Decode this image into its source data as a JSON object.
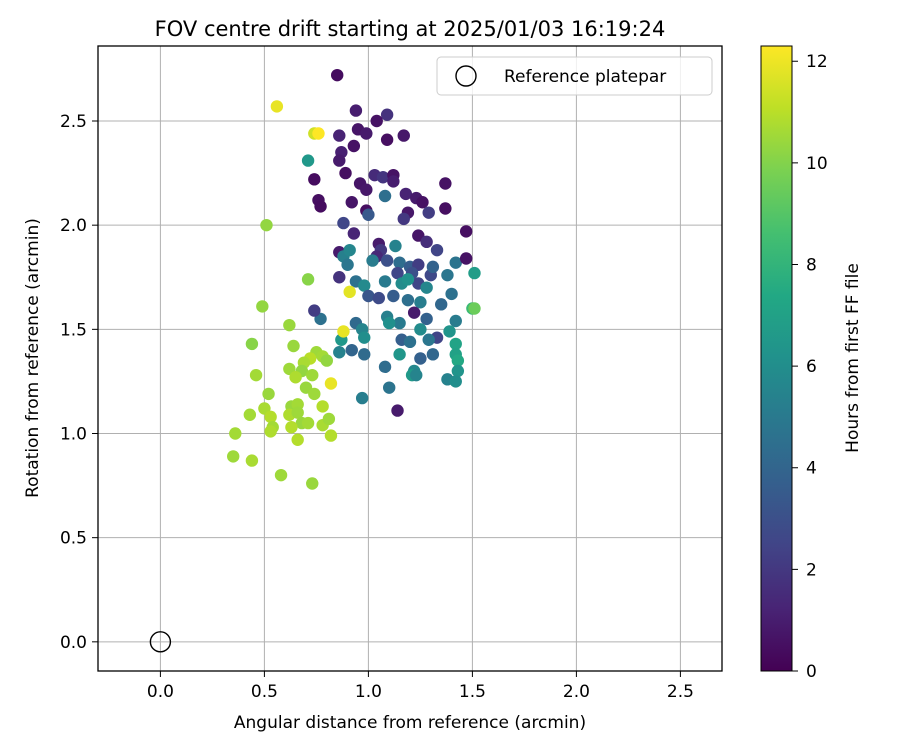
{
  "chart_data": {
    "type": "scatter",
    "title": "FOV centre drift starting at 2025/01/03 16:19:24",
    "xlabel": "Angular distance from reference (arcmin)",
    "ylabel": "Rotation from reference (arcmin)",
    "xlim": [
      -0.3,
      2.7
    ],
    "ylim": [
      -0.14,
      2.86
    ],
    "xticks": [
      0.0,
      0.5,
      1.0,
      1.5,
      2.0,
      2.5
    ],
    "yticks": [
      0.0,
      0.5,
      1.0,
      1.5,
      2.0,
      2.5
    ],
    "grid": true,
    "legend": {
      "placement": "top-right",
      "entries": [
        "Reference platepar"
      ]
    },
    "reference_point": {
      "name": "Reference platepar",
      "x": 0.0,
      "y": 0.0
    },
    "colorbar": {
      "label": "Hours from first FF file",
      "min": 0,
      "max": 12.3,
      "ticks": [
        0,
        2,
        4,
        6,
        8,
        10,
        12
      ],
      "colormap": "viridis"
    },
    "series": [
      {
        "points": [
          {
            "x": 0.85,
            "y": 2.72,
            "c": 0.4
          },
          {
            "x": 0.94,
            "y": 2.55,
            "c": 1.0
          },
          {
            "x": 1.09,
            "y": 2.53,
            "c": 1.8
          },
          {
            "x": 1.04,
            "y": 2.5,
            "c": 0.6
          },
          {
            "x": 0.95,
            "y": 2.46,
            "c": 0.7
          },
          {
            "x": 0.99,
            "y": 2.44,
            "c": 0.9
          },
          {
            "x": 0.86,
            "y": 2.43,
            "c": 1.2
          },
          {
            "x": 1.09,
            "y": 2.41,
            "c": 0.5
          },
          {
            "x": 1.17,
            "y": 2.43,
            "c": 0.8
          },
          {
            "x": 0.93,
            "y": 2.38,
            "c": 0.6
          },
          {
            "x": 0.87,
            "y": 2.35,
            "c": 1.1
          },
          {
            "x": 0.86,
            "y": 2.31,
            "c": 0.9
          },
          {
            "x": 0.89,
            "y": 2.25,
            "c": 0.5
          },
          {
            "x": 1.03,
            "y": 2.24,
            "c": 1.5
          },
          {
            "x": 1.07,
            "y": 2.23,
            "c": 1.9
          },
          {
            "x": 1.12,
            "y": 2.24,
            "c": 0.6
          },
          {
            "x": 0.74,
            "y": 2.22,
            "c": 0.4
          },
          {
            "x": 0.96,
            "y": 2.2,
            "c": 0.7
          },
          {
            "x": 1.12,
            "y": 2.21,
            "c": 1.0
          },
          {
            "x": 1.37,
            "y": 2.2,
            "c": 0.6
          },
          {
            "x": 0.99,
            "y": 2.17,
            "c": 0.8
          },
          {
            "x": 1.18,
            "y": 2.15,
            "c": 1.2
          },
          {
            "x": 1.23,
            "y": 2.13,
            "c": 0.9
          },
          {
            "x": 1.26,
            "y": 2.11,
            "c": 0.6
          },
          {
            "x": 0.76,
            "y": 2.12,
            "c": 0.5
          },
          {
            "x": 0.92,
            "y": 2.11,
            "c": 0.7
          },
          {
            "x": 1.37,
            "y": 2.08,
            "c": 0.5
          },
          {
            "x": 0.77,
            "y": 2.09,
            "c": 0.4
          },
          {
            "x": 1.29,
            "y": 2.06,
            "c": 2.2
          },
          {
            "x": 1.19,
            "y": 2.06,
            "c": 0.8
          },
          {
            "x": 0.99,
            "y": 2.07,
            "c": 0.5
          },
          {
            "x": 1.17,
            "y": 2.03,
            "c": 2.0
          },
          {
            "x": 0.88,
            "y": 2.01,
            "c": 2.6
          },
          {
            "x": 1.0,
            "y": 2.05,
            "c": 3.4
          },
          {
            "x": 1.47,
            "y": 1.97,
            "c": 0.5
          },
          {
            "x": 0.93,
            "y": 1.96,
            "c": 1.3
          },
          {
            "x": 1.24,
            "y": 1.95,
            "c": 0.7
          },
          {
            "x": 1.28,
            "y": 1.92,
            "c": 1.6
          },
          {
            "x": 1.05,
            "y": 1.91,
            "c": 0.9
          },
          {
            "x": 1.06,
            "y": 1.88,
            "c": 2.0
          },
          {
            "x": 1.13,
            "y": 1.9,
            "c": 5.4
          },
          {
            "x": 1.33,
            "y": 1.88,
            "c": 2.5
          },
          {
            "x": 0.86,
            "y": 1.87,
            "c": 0.9
          },
          {
            "x": 0.88,
            "y": 1.85,
            "c": 5.3
          },
          {
            "x": 0.91,
            "y": 1.88,
            "c": 5.6
          },
          {
            "x": 1.04,
            "y": 1.85,
            "c": 1.4
          },
          {
            "x": 1.09,
            "y": 1.83,
            "c": 3.0
          },
          {
            "x": 1.15,
            "y": 1.82,
            "c": 4.4
          },
          {
            "x": 1.2,
            "y": 1.8,
            "c": 3.6
          },
          {
            "x": 1.24,
            "y": 1.81,
            "c": 2.2
          },
          {
            "x": 1.42,
            "y": 1.82,
            "c": 4.7
          },
          {
            "x": 1.47,
            "y": 1.84,
            "c": 0.6
          },
          {
            "x": 0.9,
            "y": 1.81,
            "c": 4.8
          },
          {
            "x": 1.02,
            "y": 1.83,
            "c": 5.1
          },
          {
            "x": 1.14,
            "y": 1.77,
            "c": 2.6
          },
          {
            "x": 1.21,
            "y": 1.77,
            "c": 3.0
          },
          {
            "x": 1.3,
            "y": 1.76,
            "c": 2.7
          },
          {
            "x": 1.38,
            "y": 1.76,
            "c": 4.8
          },
          {
            "x": 1.51,
            "y": 1.77,
            "c": 6.8
          },
          {
            "x": 0.86,
            "y": 1.75,
            "c": 1.8
          },
          {
            "x": 0.94,
            "y": 1.73,
            "c": 4.6
          },
          {
            "x": 0.98,
            "y": 1.71,
            "c": 5.8
          },
          {
            "x": 1.08,
            "y": 1.73,
            "c": 5.0
          },
          {
            "x": 1.16,
            "y": 1.72,
            "c": 5.9
          },
          {
            "x": 1.24,
            "y": 1.72,
            "c": 2.5
          },
          {
            "x": 1.28,
            "y": 1.7,
            "c": 5.6
          },
          {
            "x": 1.4,
            "y": 1.67,
            "c": 4.6
          },
          {
            "x": 1.0,
            "y": 1.66,
            "c": 3.3
          },
          {
            "x": 1.05,
            "y": 1.65,
            "c": 2.8
          },
          {
            "x": 1.12,
            "y": 1.66,
            "c": 3.6
          },
          {
            "x": 1.19,
            "y": 1.64,
            "c": 4.5
          },
          {
            "x": 1.25,
            "y": 1.63,
            "c": 5.2
          },
          {
            "x": 1.35,
            "y": 1.62,
            "c": 4.1
          },
          {
            "x": 1.5,
            "y": 1.6,
            "c": 8.3
          },
          {
            "x": 0.77,
            "y": 1.55,
            "c": 4.6
          },
          {
            "x": 0.74,
            "y": 1.59,
            "c": 2.2
          },
          {
            "x": 1.09,
            "y": 1.56,
            "c": 5.3
          },
          {
            "x": 1.15,
            "y": 1.53,
            "c": 5.0
          },
          {
            "x": 1.22,
            "y": 1.58,
            "c": 0.9
          },
          {
            "x": 1.28,
            "y": 1.55,
            "c": 3.8
          },
          {
            "x": 1.42,
            "y": 1.54,
            "c": 5.1
          },
          {
            "x": 0.94,
            "y": 1.53,
            "c": 4.2
          },
          {
            "x": 0.97,
            "y": 1.5,
            "c": 5.5
          },
          {
            "x": 1.1,
            "y": 1.53,
            "c": 6.1
          },
          {
            "x": 1.25,
            "y": 1.5,
            "c": 5.9
          },
          {
            "x": 1.33,
            "y": 1.46,
            "c": 2.5
          },
          {
            "x": 1.39,
            "y": 1.49,
            "c": 6.3
          },
          {
            "x": 0.87,
            "y": 1.45,
            "c": 6.5
          },
          {
            "x": 0.98,
            "y": 1.46,
            "c": 6.0
          },
          {
            "x": 1.16,
            "y": 1.45,
            "c": 3.7
          },
          {
            "x": 1.2,
            "y": 1.44,
            "c": 4.6
          },
          {
            "x": 1.42,
            "y": 1.43,
            "c": 7.1
          },
          {
            "x": 1.29,
            "y": 1.45,
            "c": 4.8
          },
          {
            "x": 0.86,
            "y": 1.39,
            "c": 5.4
          },
          {
            "x": 0.92,
            "y": 1.4,
            "c": 4.0
          },
          {
            "x": 0.98,
            "y": 1.38,
            "c": 4.3
          },
          {
            "x": 1.15,
            "y": 1.38,
            "c": 6.4
          },
          {
            "x": 1.25,
            "y": 1.36,
            "c": 3.8
          },
          {
            "x": 1.31,
            "y": 1.38,
            "c": 4.1
          },
          {
            "x": 1.42,
            "y": 1.38,
            "c": 7.0
          },
          {
            "x": 1.43,
            "y": 1.35,
            "c": 7.4
          },
          {
            "x": 1.08,
            "y": 1.32,
            "c": 4.4
          },
          {
            "x": 1.22,
            "y": 1.3,
            "c": 5.7
          },
          {
            "x": 1.43,
            "y": 1.3,
            "c": 6.3
          },
          {
            "x": 1.21,
            "y": 1.28,
            "c": 6.6
          },
          {
            "x": 1.23,
            "y": 1.28,
            "c": 5.5
          },
          {
            "x": 1.38,
            "y": 1.26,
            "c": 5.4
          },
          {
            "x": 1.42,
            "y": 1.25,
            "c": 6.0
          },
          {
            "x": 1.1,
            "y": 1.22,
            "c": 4.7
          },
          {
            "x": 0.97,
            "y": 1.17,
            "c": 5.2
          },
          {
            "x": 1.14,
            "y": 1.11,
            "c": 0.9
          },
          {
            "x": 0.71,
            "y": 2.31,
            "c": 6.5
          },
          {
            "x": 1.08,
            "y": 2.14,
            "c": 4.5
          },
          {
            "x": 1.31,
            "y": 1.8,
            "c": 3.9
          },
          {
            "x": 1.19,
            "y": 1.74,
            "c": 6.2
          },
          {
            "x": 0.56,
            "y": 2.57,
            "c": 11.9
          },
          {
            "x": 0.74,
            "y": 2.44,
            "c": 11.4
          },
          {
            "x": 0.76,
            "y": 2.44,
            "c": 12.3
          },
          {
            "x": 0.51,
            "y": 2.0,
            "c": 10.3
          },
          {
            "x": 0.71,
            "y": 1.74,
            "c": 10.1
          },
          {
            "x": 0.91,
            "y": 1.68,
            "c": 11.8
          },
          {
            "x": 0.49,
            "y": 1.61,
            "c": 10.3
          },
          {
            "x": 0.62,
            "y": 1.52,
            "c": 10.4
          },
          {
            "x": 0.88,
            "y": 1.49,
            "c": 11.9
          },
          {
            "x": 0.44,
            "y": 1.43,
            "c": 10.1
          },
          {
            "x": 0.64,
            "y": 1.42,
            "c": 10.4
          },
          {
            "x": 0.75,
            "y": 1.39,
            "c": 10.5
          },
          {
            "x": 0.78,
            "y": 1.37,
            "c": 10.6
          },
          {
            "x": 0.72,
            "y": 1.36,
            "c": 11.0
          },
          {
            "x": 0.69,
            "y": 1.34,
            "c": 10.7
          },
          {
            "x": 0.8,
            "y": 1.35,
            "c": 10.3
          },
          {
            "x": 0.62,
            "y": 1.31,
            "c": 10.5
          },
          {
            "x": 0.68,
            "y": 1.3,
            "c": 10.3
          },
          {
            "x": 0.46,
            "y": 1.28,
            "c": 10.6
          },
          {
            "x": 0.65,
            "y": 1.27,
            "c": 10.8
          },
          {
            "x": 0.73,
            "y": 1.28,
            "c": 10.5
          },
          {
            "x": 0.7,
            "y": 1.22,
            "c": 10.4
          },
          {
            "x": 0.82,
            "y": 1.24,
            "c": 11.9
          },
          {
            "x": 0.52,
            "y": 1.19,
            "c": 10.4
          },
          {
            "x": 0.74,
            "y": 1.19,
            "c": 10.5
          },
          {
            "x": 0.63,
            "y": 1.13,
            "c": 10.4
          },
          {
            "x": 0.78,
            "y": 1.13,
            "c": 10.9
          },
          {
            "x": 0.66,
            "y": 1.14,
            "c": 10.6
          },
          {
            "x": 0.5,
            "y": 1.12,
            "c": 10.7
          },
          {
            "x": 0.62,
            "y": 1.09,
            "c": 10.8
          },
          {
            "x": 0.66,
            "y": 1.1,
            "c": 10.5
          },
          {
            "x": 0.43,
            "y": 1.09,
            "c": 10.6
          },
          {
            "x": 0.53,
            "y": 1.08,
            "c": 10.9
          },
          {
            "x": 0.68,
            "y": 1.05,
            "c": 10.4
          },
          {
            "x": 0.71,
            "y": 1.05,
            "c": 10.6
          },
          {
            "x": 0.78,
            "y": 1.04,
            "c": 10.7
          },
          {
            "x": 0.81,
            "y": 1.07,
            "c": 10.5
          },
          {
            "x": 0.54,
            "y": 1.03,
            "c": 10.6
          },
          {
            "x": 0.63,
            "y": 1.03,
            "c": 10.9
          },
          {
            "x": 0.53,
            "y": 1.01,
            "c": 10.8
          },
          {
            "x": 0.36,
            "y": 1.0,
            "c": 10.6
          },
          {
            "x": 0.82,
            "y": 0.99,
            "c": 10.9
          },
          {
            "x": 0.66,
            "y": 0.97,
            "c": 10.9
          },
          {
            "x": 0.35,
            "y": 0.89,
            "c": 10.5
          },
          {
            "x": 0.44,
            "y": 0.87,
            "c": 10.7
          },
          {
            "x": 0.58,
            "y": 0.8,
            "c": 10.5
          },
          {
            "x": 0.73,
            "y": 0.76,
            "c": 10.4
          },
          {
            "x": 1.51,
            "y": 1.6,
            "c": 9.5
          }
        ]
      }
    ]
  }
}
